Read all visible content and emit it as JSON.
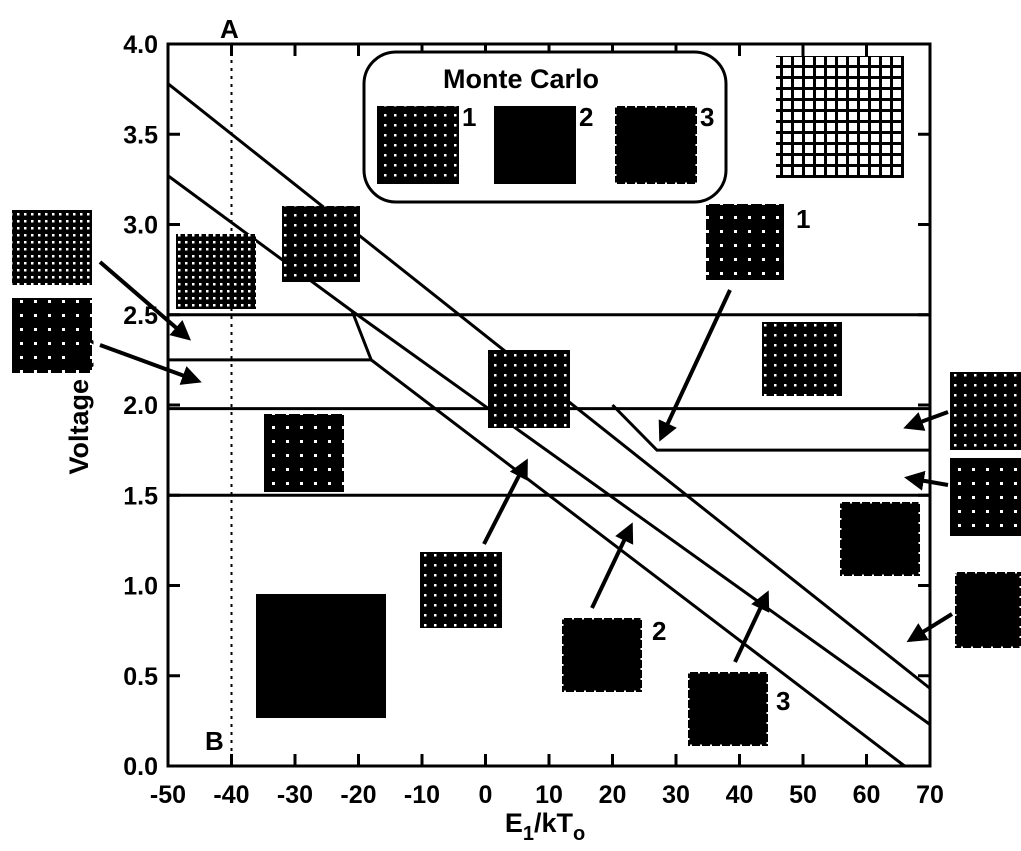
{
  "chart_data": {
    "type": "line",
    "x_label_parts": [
      "E",
      "1",
      "/kT",
      "o"
    ],
    "y_label": "Voltage (V)",
    "xlim": [
      -50,
      70
    ],
    "ylim": [
      0,
      4
    ],
    "xticks": [
      -50,
      -40,
      -30,
      -20,
      -10,
      0,
      10,
      20,
      30,
      40,
      50,
      60,
      70
    ],
    "yticks": [
      {
        "value": 0,
        "label": "0.0"
      },
      0.5,
      {
        "value": 1,
        "label": "1.0"
      },
      1.5,
      {
        "value": 2,
        "label": "2.0"
      },
      2.5,
      {
        "value": 3,
        "label": "3.0"
      },
      3.5,
      {
        "value": 4,
        "label": "4.0"
      }
    ],
    "series": [
      {
        "color": "#000000",
        "x": [
          -50,
          70
        ],
        "values": [
          3.78,
          0.43
        ]
      },
      {
        "color": "#000000",
        "x": [
          -50,
          -21,
          70
        ],
        "values": [
          3.27,
          2.52,
          0.23
        ]
      },
      {
        "color": "#000000",
        "x": [
          -21,
          -18,
          66
        ],
        "values": [
          2.52,
          2.25,
          0
        ]
      },
      {
        "color": "#000000",
        "x": [
          -50,
          70
        ],
        "values": [
          2.5,
          2.5
        ]
      },
      {
        "color": "#000000",
        "x": [
          -50,
          -18
        ],
        "values": [
          2.25,
          2.25
        ]
      },
      {
        "color": "#000000",
        "x": [
          -50,
          70
        ],
        "values": [
          1.98,
          1.98
        ]
      },
      {
        "color": "#000000",
        "x": [
          20,
          27,
          70
        ],
        "values": [
          2.0,
          1.75,
          1.75
        ]
      },
      {
        "color": "#000000",
        "x": [
          -50,
          70
        ],
        "values": [
          1.5,
          1.5
        ]
      }
    ],
    "reference_line": {
      "x": -40,
      "style": "dotted"
    },
    "annotations": [
      "A",
      "B",
      "1",
      "2",
      "3"
    ],
    "inset": {
      "title": "Monte Carlo",
      "labels": [
        "1",
        "2",
        "3"
      ]
    }
  }
}
